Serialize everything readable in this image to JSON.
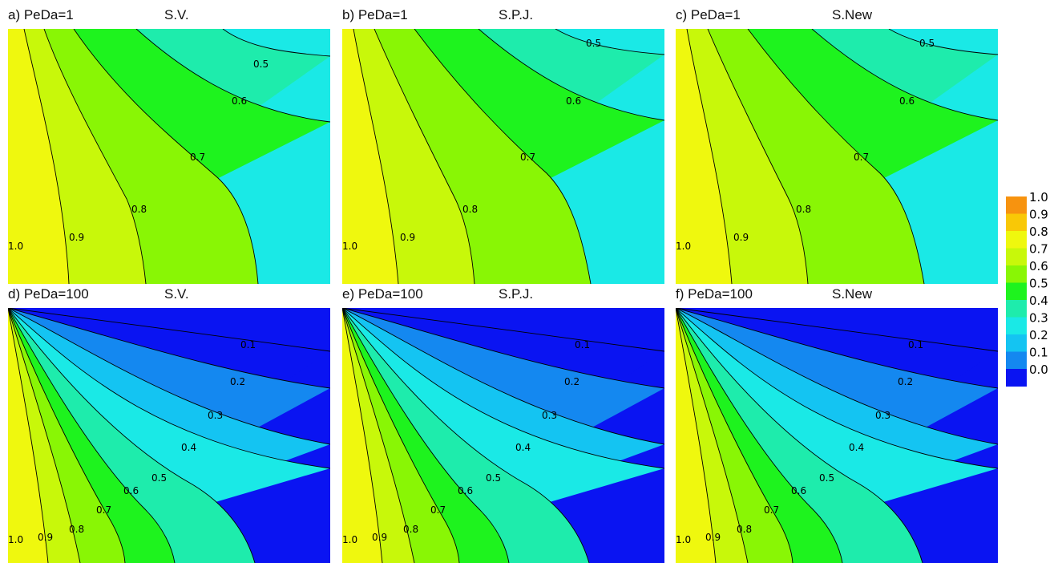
{
  "chart_data": [
    {
      "type": "heatmap",
      "panel_label": "a)",
      "parameter": "PeDa=1",
      "method": "S.V.",
      "contour_levels": [
        1.0,
        0.9,
        0.8,
        0.7,
        0.6,
        0.5
      ]
    },
    {
      "type": "heatmap",
      "panel_label": "b)",
      "parameter": "PeDa=1",
      "method": "S.P.J.",
      "contour_levels": [
        1.0,
        0.9,
        0.8,
        0.7,
        0.6,
        0.5
      ]
    },
    {
      "type": "heatmap",
      "panel_label": "c)",
      "parameter": "PeDa=1",
      "method": "S.New",
      "contour_levels": [
        1.0,
        0.9,
        0.8,
        0.7,
        0.6,
        0.5
      ]
    },
    {
      "type": "heatmap",
      "panel_label": "d)",
      "parameter": "PeDa=100",
      "method": "S.V.",
      "contour_levels": [
        1.0,
        0.9,
        0.8,
        0.7,
        0.6,
        0.5,
        0.4,
        0.3,
        0.2,
        0.1
      ]
    },
    {
      "type": "heatmap",
      "panel_label": "e)",
      "parameter": "PeDa=100",
      "method": "S.P.J.",
      "contour_levels": [
        1.0,
        0.9,
        0.8,
        0.7,
        0.6,
        0.5,
        0.4,
        0.3,
        0.2,
        0.1
      ]
    },
    {
      "type": "heatmap",
      "panel_label": "f)",
      "parameter": "PeDa=100",
      "method": "S.New",
      "contour_levels": [
        1.0,
        0.9,
        0.8,
        0.7,
        0.6,
        0.5,
        0.4,
        0.3,
        0.2,
        0.1
      ]
    }
  ],
  "colorbar": {
    "ticks": [
      "1.0",
      "0.9",
      "0.8",
      "0.7",
      "0.6",
      "0.5",
      "0.4",
      "0.3",
      "0.2",
      "0.1",
      "0.0"
    ],
    "colors": [
      "#f7930f",
      "#f9c806",
      "#eff80e",
      "#c8f80a",
      "#89f605",
      "#1ef31e",
      "#1eecac",
      "#1ae9e6",
      "#14c4f2",
      "#1488f0",
      "#0a14f2"
    ]
  }
}
